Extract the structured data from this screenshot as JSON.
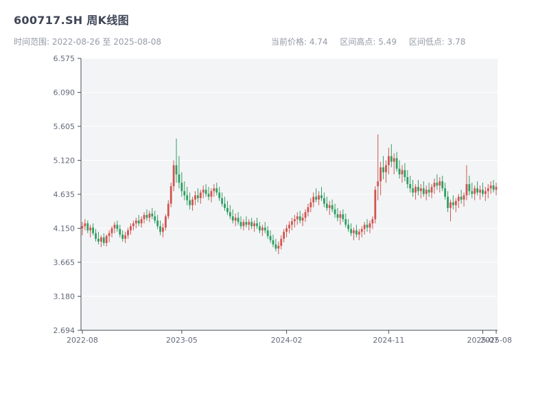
{
  "header": {
    "title": "600717.SH 周K线图",
    "subtitle_left": "时间范围: 2022-08-26 至 2025-08-08",
    "stats": {
      "current": "当前价格: 4.74",
      "high": "区间高点: 5.49",
      "low": "区间低点: 3.78"
    }
  },
  "chart_data": {
    "type": "candlestick",
    "title": "600717.SH 周K线图",
    "symbol": "600717.SH",
    "interval": "weekly",
    "start_date": "2022-08-26",
    "end_date": "2025-08-08",
    "current_price": 4.74,
    "range_high": 5.49,
    "range_low": 3.78,
    "ylim": [
      2.694,
      6.575
    ],
    "grid": true,
    "y_ticks": [
      {
        "label": "6.575",
        "value": 6.575
      },
      {
        "label": "6.090",
        "value": 6.09
      },
      {
        "label": "5.605",
        "value": 5.605
      },
      {
        "label": "5.120",
        "value": 5.12
      },
      {
        "label": "4.635",
        "value": 4.635
      },
      {
        "label": "4.150",
        "value": 4.15
      },
      {
        "label": "3.665",
        "value": 3.665
      },
      {
        "label": "3.180",
        "value": 3.18
      },
      {
        "label": "2.694",
        "value": 2.694
      }
    ],
    "x_ticks": [
      {
        "label": "2022-08",
        "week": 0
      },
      {
        "label": "2023-05",
        "week": 37
      },
      {
        "label": "2024-02",
        "week": 76
      },
      {
        "label": "2024-11",
        "week": 114
      },
      {
        "label": "2025-07",
        "week": 149
      },
      {
        "label": "2025-08",
        "week": 154
      }
    ],
    "colors": {
      "up": "#d0544f",
      "down": "#2f9e62",
      "panel": "#f3f4f6",
      "grid": "#ffffff",
      "axis": "#454b54",
      "tick_text": "#63697a"
    },
    "candles": [
      [
        4.15,
        4.24,
        4.05,
        4.18
      ],
      [
        4.18,
        4.28,
        4.12,
        4.22
      ],
      [
        4.22,
        4.26,
        4.08,
        4.12
      ],
      [
        4.12,
        4.2,
        4.02,
        4.16
      ],
      [
        4.16,
        4.22,
        4.05,
        4.08
      ],
      [
        4.08,
        4.14,
        3.96,
        4.0
      ],
      [
        4.0,
        4.1,
        3.92,
        3.96
      ],
      [
        3.96,
        4.05,
        3.88,
        4.02
      ],
      [
        4.02,
        4.08,
        3.9,
        3.94
      ],
      [
        3.94,
        4.06,
        3.89,
        4.04
      ],
      [
        4.04,
        4.12,
        3.95,
        4.08
      ],
      [
        4.08,
        4.18,
        4.02,
        4.15
      ],
      [
        4.15,
        4.24,
        4.08,
        4.2
      ],
      [
        4.2,
        4.26,
        4.1,
        4.14
      ],
      [
        4.14,
        4.2,
        4.02,
        4.06
      ],
      [
        4.06,
        4.12,
        3.96,
        4.0
      ],
      [
        4.0,
        4.1,
        3.94,
        4.05
      ],
      [
        4.05,
        4.16,
        4.0,
        4.12
      ],
      [
        4.12,
        4.22,
        4.06,
        4.18
      ],
      [
        4.18,
        4.26,
        4.12,
        4.22
      ],
      [
        4.22,
        4.3,
        4.15,
        4.26
      ],
      [
        4.26,
        4.34,
        4.18,
        4.22
      ],
      [
        4.22,
        4.32,
        4.16,
        4.28
      ],
      [
        4.28,
        4.38,
        4.22,
        4.34
      ],
      [
        4.34,
        4.42,
        4.26,
        4.3
      ],
      [
        4.3,
        4.4,
        4.24,
        4.36
      ],
      [
        4.36,
        4.44,
        4.28,
        4.32
      ],
      [
        4.32,
        4.4,
        4.22,
        4.26
      ],
      [
        4.26,
        4.34,
        4.14,
        4.18
      ],
      [
        4.18,
        4.26,
        4.05,
        4.1
      ],
      [
        4.1,
        4.22,
        4.02,
        4.16
      ],
      [
        4.16,
        4.35,
        4.12,
        4.32
      ],
      [
        4.32,
        4.55,
        4.28,
        4.5
      ],
      [
        4.5,
        4.8,
        4.45,
        4.75
      ],
      [
        4.75,
        5.12,
        4.68,
        5.05
      ],
      [
        5.05,
        5.43,
        4.8,
        4.92
      ],
      [
        4.92,
        5.18,
        4.72,
        4.8
      ],
      [
        4.8,
        4.95,
        4.6,
        4.68
      ],
      [
        4.68,
        4.82,
        4.55,
        4.62
      ],
      [
        4.62,
        4.74,
        4.48,
        4.55
      ],
      [
        4.55,
        4.66,
        4.42,
        4.48
      ],
      [
        4.48,
        4.6,
        4.4,
        4.56
      ],
      [
        4.56,
        4.68,
        4.48,
        4.62
      ],
      [
        4.62,
        4.72,
        4.52,
        4.58
      ],
      [
        4.58,
        4.7,
        4.5,
        4.66
      ],
      [
        4.66,
        4.76,
        4.58,
        4.7
      ],
      [
        4.7,
        4.78,
        4.6,
        4.64
      ],
      [
        4.64,
        4.74,
        4.55,
        4.6
      ],
      [
        4.6,
        4.72,
        4.52,
        4.68
      ],
      [
        4.68,
        4.78,
        4.6,
        4.72
      ],
      [
        4.72,
        4.8,
        4.62,
        4.66
      ],
      [
        4.66,
        4.74,
        4.54,
        4.58
      ],
      [
        4.58,
        4.66,
        4.46,
        4.5
      ],
      [
        4.5,
        4.6,
        4.4,
        4.44
      ],
      [
        4.44,
        4.54,
        4.34,
        4.38
      ],
      [
        4.38,
        4.48,
        4.28,
        4.32
      ],
      [
        4.32,
        4.42,
        4.22,
        4.26
      ],
      [
        4.26,
        4.36,
        4.18,
        4.3
      ],
      [
        4.3,
        4.38,
        4.2,
        4.24
      ],
      [
        4.24,
        4.32,
        4.14,
        4.18
      ],
      [
        4.18,
        4.28,
        4.12,
        4.24
      ],
      [
        4.24,
        4.32,
        4.16,
        4.2
      ],
      [
        4.2,
        4.28,
        4.12,
        4.24
      ],
      [
        4.24,
        4.3,
        4.14,
        4.18
      ],
      [
        4.18,
        4.26,
        4.1,
        4.22
      ],
      [
        4.22,
        4.3,
        4.14,
        4.18
      ],
      [
        4.18,
        4.24,
        4.08,
        4.12
      ],
      [
        4.12,
        4.2,
        4.04,
        4.16
      ],
      [
        4.16,
        4.24,
        4.08,
        4.12
      ],
      [
        4.12,
        4.18,
        4.0,
        4.04
      ],
      [
        4.04,
        4.12,
        3.94,
        3.98
      ],
      [
        3.98,
        4.06,
        3.88,
        3.92
      ],
      [
        3.92,
        4.0,
        3.82,
        3.86
      ],
      [
        3.86,
        3.96,
        3.78,
        3.9
      ],
      [
        3.9,
        4.05,
        3.85,
        4.0
      ],
      [
        4.0,
        4.14,
        3.95,
        4.1
      ],
      [
        4.1,
        4.2,
        4.02,
        4.15
      ],
      [
        4.15,
        4.25,
        4.08,
        4.2
      ],
      [
        4.2,
        4.3,
        4.12,
        4.25
      ],
      [
        4.25,
        4.34,
        4.16,
        4.28
      ],
      [
        4.28,
        4.38,
        4.2,
        4.32
      ],
      [
        4.32,
        4.4,
        4.22,
        4.26
      ],
      [
        4.26,
        4.36,
        4.18,
        4.3
      ],
      [
        4.3,
        4.42,
        4.24,
        4.38
      ],
      [
        4.38,
        4.5,
        4.32,
        4.45
      ],
      [
        4.45,
        4.58,
        4.38,
        4.52
      ],
      [
        4.52,
        4.66,
        4.45,
        4.6
      ],
      [
        4.6,
        4.72,
        4.52,
        4.56
      ],
      [
        4.56,
        4.68,
        4.48,
        4.62
      ],
      [
        4.62,
        4.74,
        4.54,
        4.58
      ],
      [
        4.58,
        4.66,
        4.45,
        4.5
      ],
      [
        4.5,
        4.6,
        4.4,
        4.44
      ],
      [
        4.44,
        4.54,
        4.34,
        4.48
      ],
      [
        4.48,
        4.56,
        4.38,
        4.42
      ],
      [
        4.42,
        4.5,
        4.3,
        4.35
      ],
      [
        4.35,
        4.44,
        4.25,
        4.3
      ],
      [
        4.3,
        4.4,
        4.2,
        4.35
      ],
      [
        4.35,
        4.42,
        4.24,
        4.28
      ],
      [
        4.28,
        4.36,
        4.16,
        4.2
      ],
      [
        4.2,
        4.28,
        4.1,
        4.14
      ],
      [
        4.14,
        4.22,
        4.04,
        4.08
      ],
      [
        4.08,
        4.16,
        3.98,
        4.12
      ],
      [
        4.12,
        4.2,
        4.02,
        4.06
      ],
      [
        4.06,
        4.14,
        3.98,
        4.1
      ],
      [
        4.1,
        4.18,
        4.02,
        4.14
      ],
      [
        4.14,
        4.24,
        4.06,
        4.2
      ],
      [
        4.2,
        4.28,
        4.1,
        4.16
      ],
      [
        4.16,
        4.26,
        4.08,
        4.22
      ],
      [
        4.22,
        4.32,
        4.14,
        4.28
      ],
      [
        4.28,
        4.75,
        4.22,
        4.7
      ],
      [
        4.75,
        5.49,
        4.55,
        4.82
      ],
      [
        4.82,
        5.1,
        4.62,
        5.02
      ],
      [
        5.02,
        5.18,
        4.85,
        4.95
      ],
      [
        4.95,
        5.12,
        4.8,
        5.05
      ],
      [
        5.05,
        5.3,
        4.92,
        5.18
      ],
      [
        5.18,
        5.35,
        5.02,
        5.1
      ],
      [
        5.1,
        5.22,
        4.92,
        5.15
      ],
      [
        5.15,
        5.24,
        4.96,
        5.0
      ],
      [
        5.0,
        5.12,
        4.86,
        4.92
      ],
      [
        4.92,
        5.05,
        4.8,
        4.98
      ],
      [
        4.98,
        5.08,
        4.82,
        4.88
      ],
      [
        4.88,
        4.98,
        4.72,
        4.78
      ],
      [
        4.78,
        4.9,
        4.66,
        4.72
      ],
      [
        4.72,
        4.84,
        4.6,
        4.66
      ],
      [
        4.66,
        4.78,
        4.56,
        4.74
      ],
      [
        4.74,
        4.84,
        4.62,
        4.68
      ],
      [
        4.68,
        4.78,
        4.58,
        4.72
      ],
      [
        4.72,
        4.82,
        4.6,
        4.64
      ],
      [
        4.64,
        4.76,
        4.55,
        4.7
      ],
      [
        4.7,
        4.8,
        4.6,
        4.66
      ],
      [
        4.66,
        4.78,
        4.58,
        4.74
      ],
      [
        4.74,
        4.86,
        4.64,
        4.8
      ],
      [
        4.8,
        4.92,
        4.7,
        4.76
      ],
      [
        4.76,
        4.88,
        4.66,
        4.82
      ],
      [
        4.82,
        4.9,
        4.68,
        4.72
      ],
      [
        4.72,
        4.8,
        4.56,
        4.6
      ],
      [
        4.6,
        4.68,
        4.38,
        4.44
      ],
      [
        4.44,
        4.56,
        4.25,
        4.52
      ],
      [
        4.52,
        4.62,
        4.42,
        4.48
      ],
      [
        4.48,
        4.58,
        4.38,
        4.54
      ],
      [
        4.54,
        4.64,
        4.44,
        4.6
      ],
      [
        4.6,
        4.7,
        4.5,
        4.56
      ],
      [
        4.56,
        4.66,
        4.46,
        4.62
      ],
      [
        4.62,
        5.05,
        4.55,
        4.78
      ],
      [
        4.78,
        4.9,
        4.62,
        4.68
      ],
      [
        4.68,
        4.8,
        4.58,
        4.64
      ],
      [
        4.64,
        4.76,
        4.55,
        4.72
      ],
      [
        4.72,
        4.82,
        4.62,
        4.66
      ],
      [
        4.66,
        4.76,
        4.56,
        4.7
      ],
      [
        4.7,
        4.8,
        4.6,
        4.64
      ],
      [
        4.64,
        4.74,
        4.54,
        4.68
      ],
      [
        4.68,
        4.78,
        4.58,
        4.72
      ],
      [
        4.72,
        4.82,
        4.64,
        4.76
      ],
      [
        4.76,
        4.84,
        4.66,
        4.7
      ],
      [
        4.7,
        4.8,
        4.62,
        4.74
      ]
    ]
  }
}
